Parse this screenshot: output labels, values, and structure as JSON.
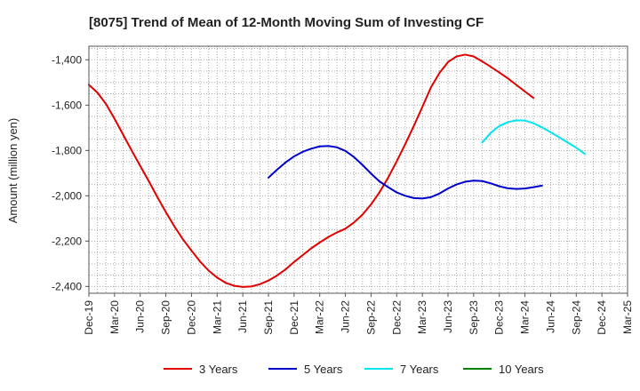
{
  "chart_data": {
    "type": "line",
    "title": "[8075]  Trend of Mean of 12-Month Moving Sum of Investing CF",
    "ylabel": "Amount (million yen)",
    "xlabel": "",
    "ylim": [
      -2430,
      -1340
    ],
    "yticks": [
      -1400,
      -1600,
      -1800,
      -2000,
      -2200,
      -2400
    ],
    "ytick_labels": [
      "-1,400",
      "-1,600",
      "-1,800",
      "-2,000",
      "-2,200",
      "-2,400"
    ],
    "xticks": [
      "Dec-19",
      "Mar-20",
      "Jun-20",
      "Sep-20",
      "Dec-20",
      "Mar-21",
      "Jun-21",
      "Sep-21",
      "Dec-21",
      "Mar-22",
      "Jun-22",
      "Sep-22",
      "Dec-22",
      "Mar-23",
      "Jun-23",
      "Sep-23",
      "Dec-23",
      "Mar-24",
      "Jun-24",
      "Sep-24",
      "Dec-24",
      "Mar-25"
    ],
    "grid": true,
    "legend_position": "bottom",
    "series": [
      {
        "name": "3 Years",
        "color": "#e00000",
        "start_index": 0,
        "values": [
          -1510,
          -1545,
          -1595,
          -1660,
          -1730,
          -1800,
          -1868,
          -1935,
          -2005,
          -2072,
          -2135,
          -2192,
          -2242,
          -2290,
          -2330,
          -2361,
          -2384,
          -2397,
          -2402,
          -2400,
          -2390,
          -2374,
          -2352,
          -2325,
          -2292,
          -2262,
          -2232,
          -2206,
          -2182,
          -2162,
          -2145,
          -2118,
          -2083,
          -2038,
          -1984,
          -1920,
          -1848,
          -1772,
          -1692,
          -1608,
          -1522,
          -1458,
          -1410,
          -1385,
          -1377,
          -1385,
          -1407,
          -1431,
          -1456,
          -1482,
          -1511,
          -1540,
          -1568
        ]
      },
      {
        "name": "5 Years",
        "color": "#0000cc",
        "start_index": 21,
        "values": [
          -1920,
          -1885,
          -1853,
          -1826,
          -1806,
          -1792,
          -1782,
          -1780,
          -1786,
          -1802,
          -1829,
          -1864,
          -1902,
          -1937,
          -1962,
          -1985,
          -2000,
          -2010,
          -2012,
          -2006,
          -1990,
          -1968,
          -1950,
          -1938,
          -1933,
          -1935,
          -1945,
          -1958,
          -1967,
          -1970,
          -1968,
          -1962,
          -1955
        ]
      },
      {
        "name": "7 Years",
        "color": "#00e5ee",
        "start_index": 46,
        "values": [
          -1765,
          -1722,
          -1692,
          -1675,
          -1667,
          -1668,
          -1680,
          -1698,
          -1720,
          -1742,
          -1765,
          -1788,
          -1815
        ]
      },
      {
        "name": "10 Years",
        "color": "#008000",
        "start_index": 0,
        "values": []
      }
    ]
  }
}
